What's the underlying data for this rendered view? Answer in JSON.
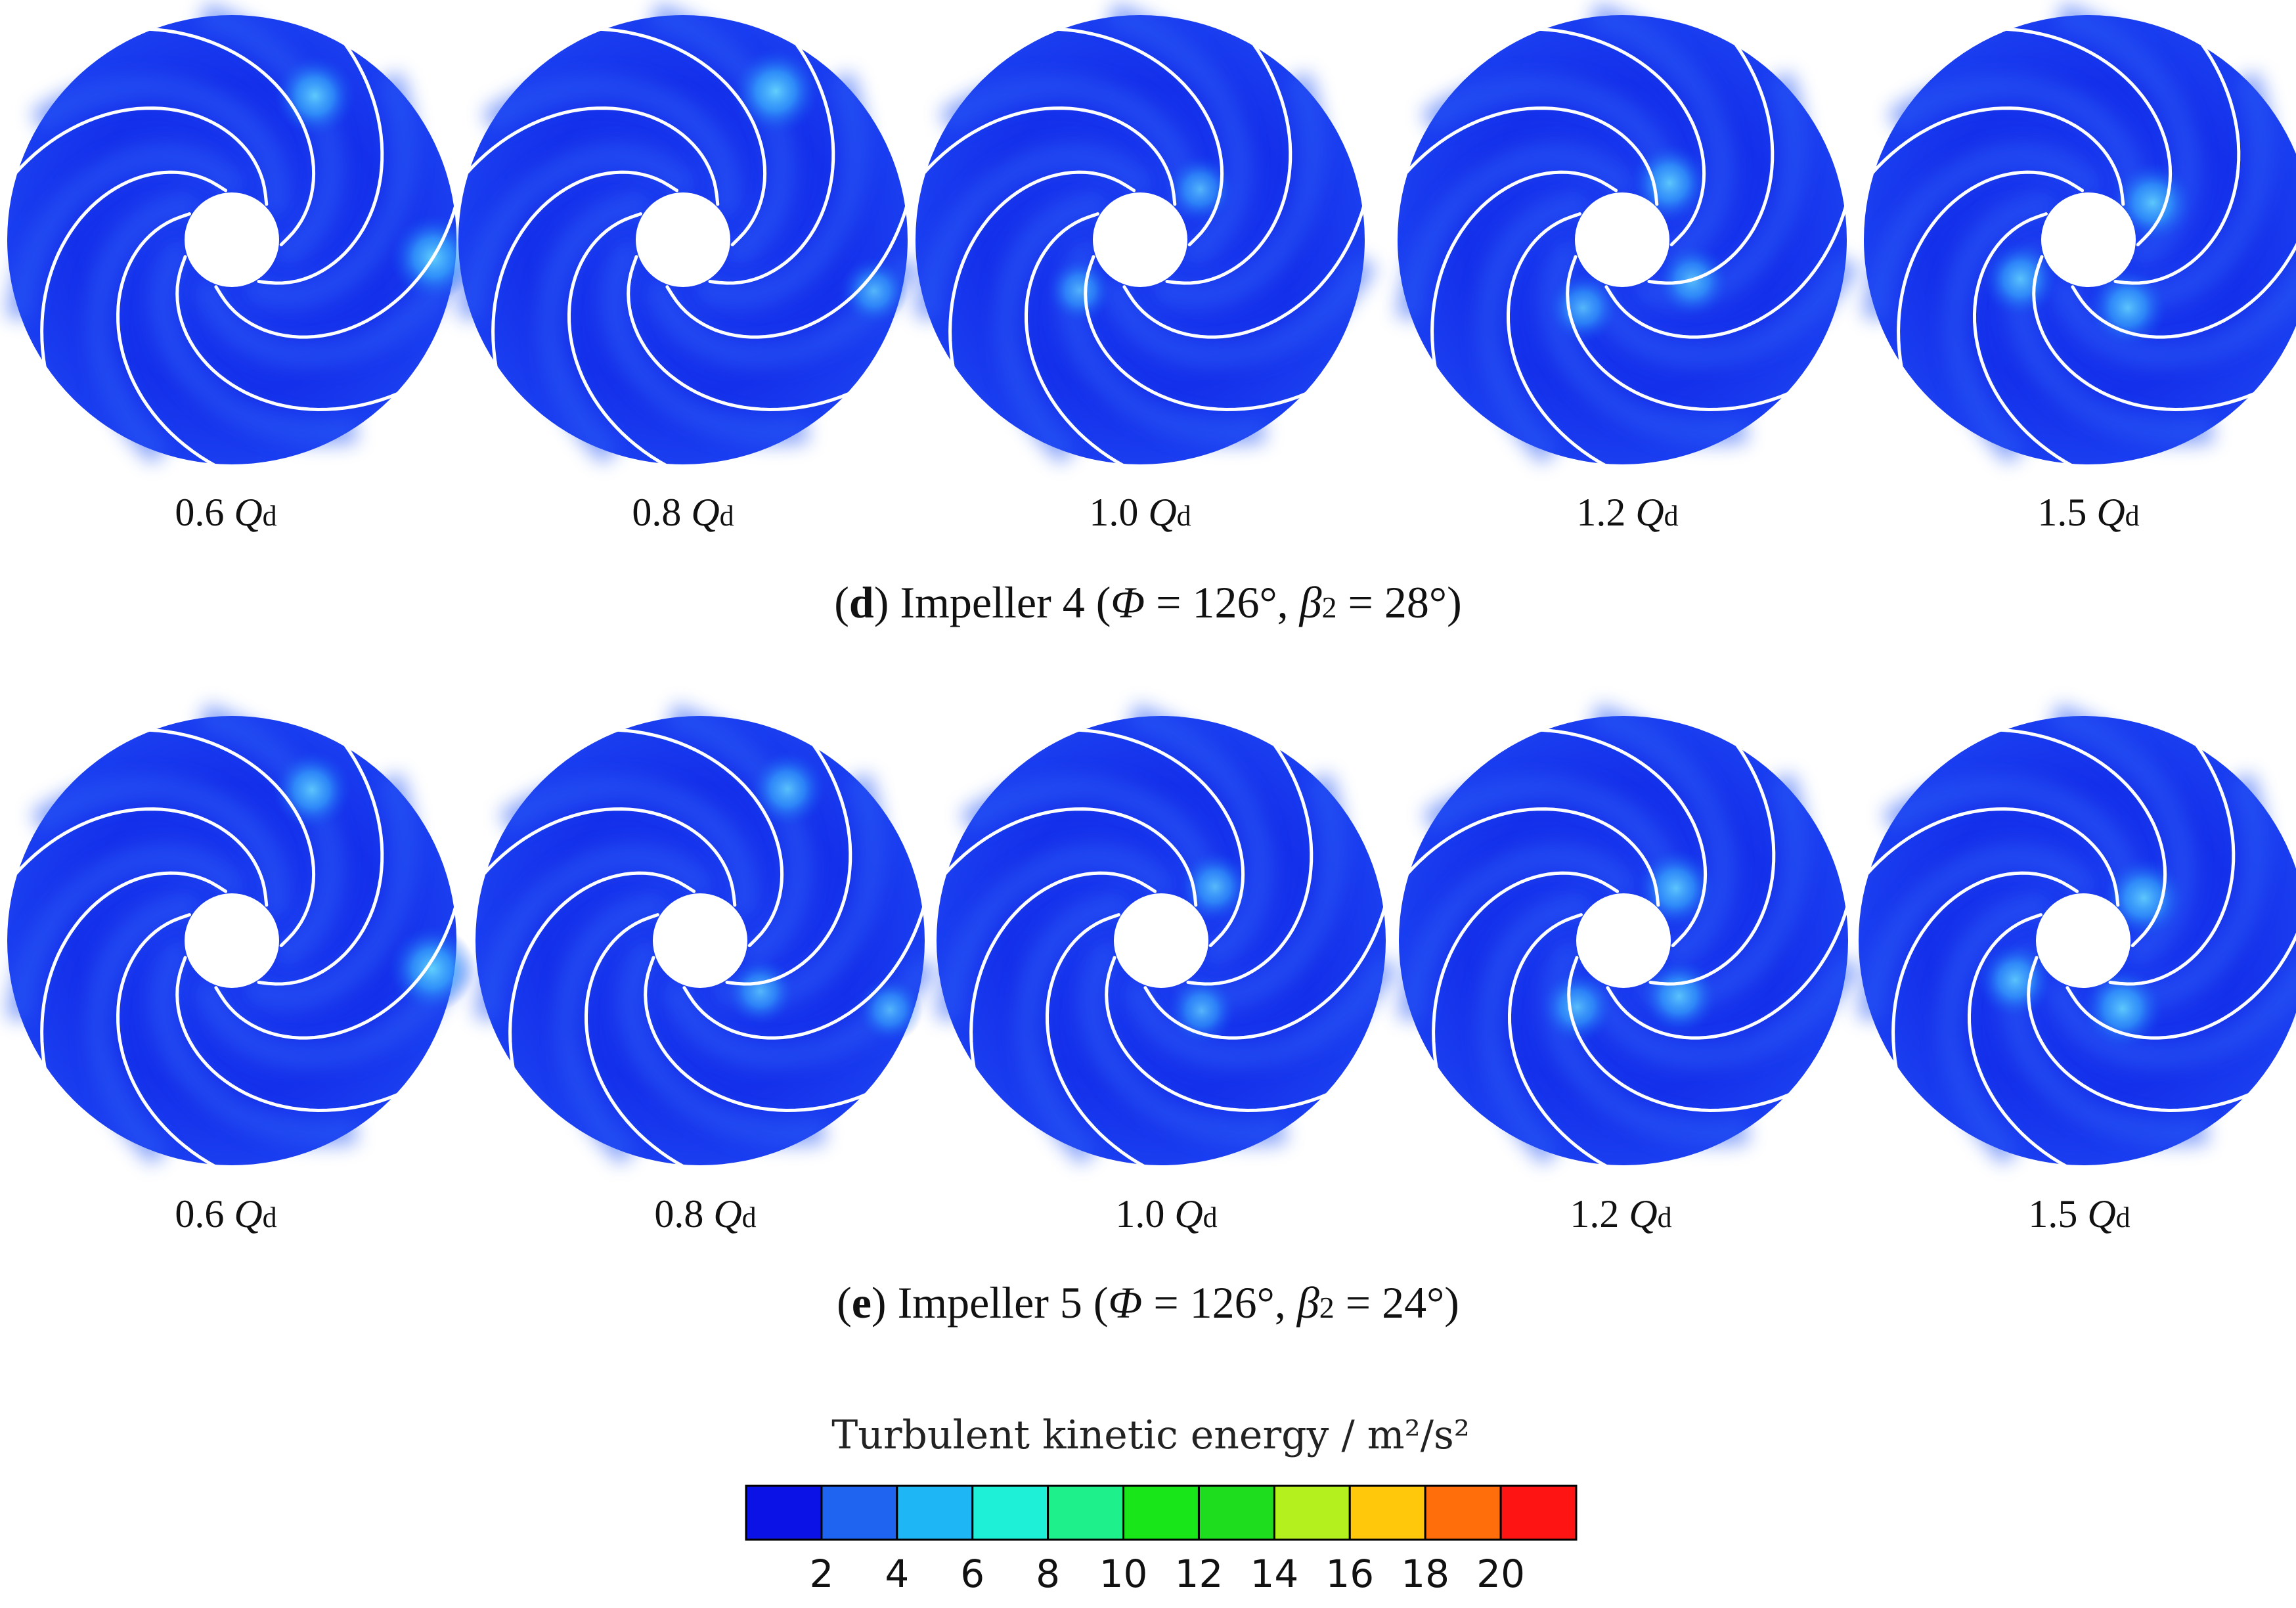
{
  "figure": {
    "rows": [
      {
        "id": "d",
        "caption": {
          "open": "(",
          "letter": "d",
          "text": ") Impeller 4 (",
          "phi_symbol": "Φ",
          "phi_text": " = 126°, ",
          "beta_symbol": "β",
          "beta_sub": "2",
          "beta_text": " = 28°)"
        },
        "panels": [
          {
            "value": "0.6",
            "symbol": "Q",
            "sub": "d",
            "hotspots": [
              {
                "angle": -60,
                "r": 0.74,
                "strength": 0.6
              },
              {
                "angle": 5,
                "r": 0.9,
                "strength": 0.7
              }
            ]
          },
          {
            "value": "0.8",
            "symbol": "Q",
            "sub": "d",
            "hotspots": [
              {
                "angle": -58,
                "r": 0.78,
                "strength": 0.7
              },
              {
                "angle": 15,
                "r": 0.88,
                "strength": 0.35
              }
            ]
          },
          {
            "value": "1.0",
            "symbol": "Q",
            "sub": "d",
            "hotspots": [
              {
                "angle": -40,
                "r": 0.35,
                "strength": 0.35
              },
              {
                "angle": 140,
                "r": 0.35,
                "strength": 0.3
              }
            ]
          },
          {
            "value": "1.2",
            "symbol": "Q",
            "sub": "d",
            "hotspots": [
              {
                "angle": -50,
                "r": 0.33,
                "strength": 0.55
              },
              {
                "angle": 30,
                "r": 0.36,
                "strength": 0.45
              },
              {
                "angle": 120,
                "r": 0.35,
                "strength": 0.4
              }
            ]
          },
          {
            "value": "1.5",
            "symbol": "Q",
            "sub": "d",
            "hotspots": [
              {
                "angle": -30,
                "r": 0.33,
                "strength": 0.6
              },
              {
                "angle": 60,
                "r": 0.35,
                "strength": 0.55
              },
              {
                "angle": 150,
                "r": 0.35,
                "strength": 0.5
              }
            ]
          }
        ]
      },
      {
        "id": "e",
        "caption": {
          "open": "(",
          "letter": "e",
          "text": ") Impeller 5 (",
          "phi_symbol": "Φ",
          "phi_text": " = 126°, ",
          "beta_symbol": "β",
          "beta_sub": "2",
          "beta_text": " = 24°)"
        },
        "panels": [
          {
            "value": "0.6",
            "symbol": "Q",
            "sub": "d",
            "hotspots": [
              {
                "angle": -62,
                "r": 0.76,
                "strength": 0.55
              },
              {
                "angle": 8,
                "r": 0.9,
                "strength": 0.7
              }
            ]
          },
          {
            "value": "0.8",
            "symbol": "Q",
            "sub": "d",
            "hotspots": [
              {
                "angle": -60,
                "r": 0.78,
                "strength": 0.5
              },
              {
                "angle": 20,
                "r": 0.9,
                "strength": 0.3
              },
              {
                "angle": 40,
                "r": 0.35,
                "strength": 0.35
              }
            ]
          },
          {
            "value": "1.0",
            "symbol": "Q",
            "sub": "d",
            "hotspots": [
              {
                "angle": -45,
                "r": 0.34,
                "strength": 0.4
              },
              {
                "angle": 60,
                "r": 0.36,
                "strength": 0.35
              }
            ]
          },
          {
            "value": "1.2",
            "symbol": "Q",
            "sub": "d",
            "hotspots": [
              {
                "angle": -45,
                "r": 0.33,
                "strength": 0.55
              },
              {
                "angle": 45,
                "r": 0.35,
                "strength": 0.5
              },
              {
                "angle": 125,
                "r": 0.36,
                "strength": 0.45
              }
            ]
          },
          {
            "value": "1.5",
            "symbol": "Q",
            "sub": "d",
            "hotspots": [
              {
                "angle": -35,
                "r": 0.33,
                "strength": 0.6
              },
              {
                "angle": 60,
                "r": 0.35,
                "strength": 0.6
              },
              {
                "angle": 150,
                "r": 0.35,
                "strength": 0.5
              }
            ]
          }
        ]
      }
    ],
    "colorbar": {
      "title": "Turbulent kinetic energy / m²/s²",
      "colors": [
        "#0b12e6",
        "#1e64f0",
        "#1eb6f5",
        "#1ef0d7",
        "#1ef08c",
        "#19e619",
        "#1edc1e",
        "#b4f01e",
        "#ffc80a",
        "#ff6e0a",
        "#ff1414"
      ],
      "ticks": [
        "2",
        "4",
        "6",
        "8",
        "10",
        "12",
        "14",
        "16",
        "18",
        "20"
      ]
    }
  }
}
